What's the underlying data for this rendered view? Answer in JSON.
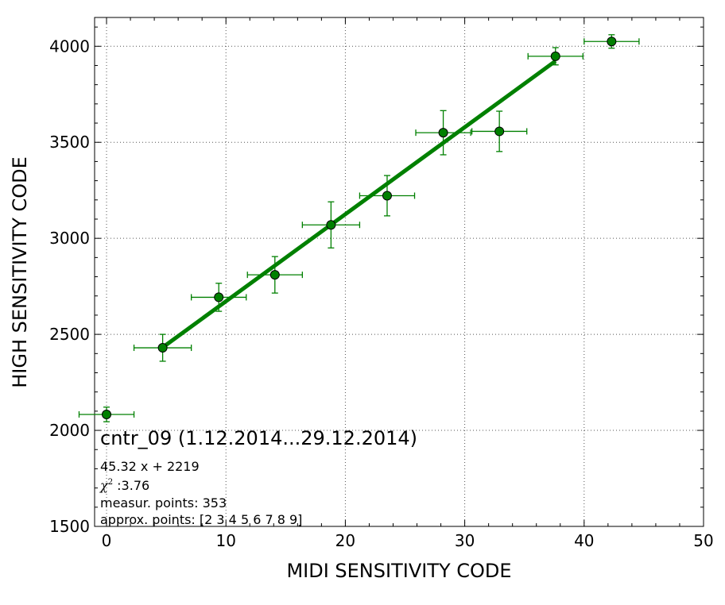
{
  "chart_data": {
    "type": "scatter",
    "title": "",
    "xlabel": "MIDI SENSITIVITY CODE",
    "ylabel": "HIGH SENSITIVITY CODE",
    "xlim": [
      -1,
      50
    ],
    "ylim": [
      1500,
      4150
    ],
    "xticks": [
      0,
      10,
      20,
      30,
      40,
      50
    ],
    "yticks": [
      1500,
      2000,
      2500,
      3000,
      3500,
      4000
    ],
    "grid": true,
    "colors": {
      "series": "#008000",
      "marker_edge": "#000000",
      "grid": "#555555"
    },
    "series": [
      {
        "type": "errorbar",
        "points": [
          {
            "x": 0.0,
            "y": 2083,
            "xerr": 2.3,
            "yerr": 38
          },
          {
            "x": 4.7,
            "y": 2430,
            "xerr": 2.4,
            "yerr": 70
          },
          {
            "x": 9.4,
            "y": 2693,
            "xerr": 2.3,
            "yerr": 73
          },
          {
            "x": 14.1,
            "y": 2810,
            "xerr": 2.3,
            "yerr": 95
          },
          {
            "x": 18.8,
            "y": 3070,
            "xerr": 2.4,
            "yerr": 120
          },
          {
            "x": 23.5,
            "y": 3222,
            "xerr": 2.3,
            "yerr": 105
          },
          {
            "x": 28.2,
            "y": 3550,
            "xerr": 2.3,
            "yerr": 115
          },
          {
            "x": 32.9,
            "y": 3557,
            "xerr": 2.3,
            "yerr": 105
          },
          {
            "x": 37.6,
            "y": 3948,
            "xerr": 2.3,
            "yerr": 45
          },
          {
            "x": 42.3,
            "y": 4025,
            "xerr": 2.3,
            "yerr": 35
          }
        ]
      },
      {
        "type": "fit-line",
        "x": [
          4.7,
          37.6
        ],
        "slope": 45.32,
        "intercept": 2219
      }
    ],
    "annotations": {
      "title": "cntr_09 (1.12.2014...29.12.2014)",
      "fit": "45.32 x + 2219",
      "chi_symbol": "χ",
      "chi_power": "2",
      "chi_value": " :3.76",
      "measur": "measur. points: 353",
      "approx": "approx. points: [2 3 4 5 6 7 8 9]"
    }
  }
}
